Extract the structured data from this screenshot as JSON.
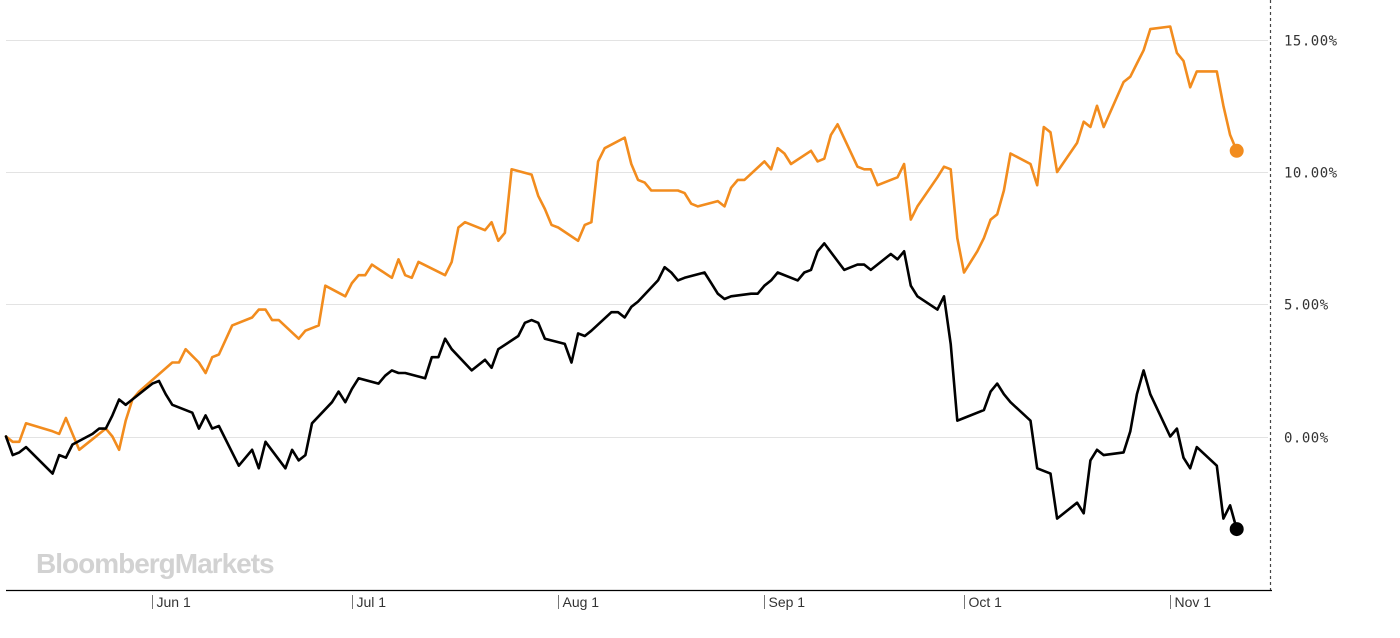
{
  "watermark": "BloombergMarkets",
  "chart_data": {
    "type": "line",
    "title": "",
    "xlabel": "",
    "ylabel": "",
    "x_tick_labels": [
      "Jun 1",
      "Jul 1",
      "Aug 1",
      "Sep 1",
      "Oct 1",
      "Nov 1"
    ],
    "y_tick_labels": [
      "15.00%",
      "10.00%",
      "5.00%",
      "0.00%"
    ],
    "y_ticks": [
      15,
      10,
      5,
      0
    ],
    "ylim": [
      -5.8,
      16.5
    ],
    "xlim": [
      "2018-05-10",
      "2018-11-16"
    ],
    "grid": true,
    "legend": "none",
    "series": [
      {
        "color": "#f28c1e",
        "end_marker": true,
        "points": [
          [
            "2018-05-10",
            0.0
          ],
          [
            "2018-05-11",
            -0.2
          ],
          [
            "2018-05-12",
            -0.2
          ],
          [
            "2018-05-13",
            0.5
          ],
          [
            "2018-05-17",
            0.2
          ],
          [
            "2018-05-18",
            0.1
          ],
          [
            "2018-05-19",
            0.7
          ],
          [
            "2018-05-20",
            0.1
          ],
          [
            "2018-05-21",
            -0.5
          ],
          [
            "2018-05-23",
            -0.1
          ],
          [
            "2018-05-24",
            0.1
          ],
          [
            "2018-05-25",
            0.3
          ],
          [
            "2018-05-26",
            0.0
          ],
          [
            "2018-05-27",
            -0.5
          ],
          [
            "2018-05-28",
            0.6
          ],
          [
            "2018-05-29",
            1.4
          ],
          [
            "2018-05-30",
            1.7
          ],
          [
            "2018-06-04",
            2.8
          ],
          [
            "2018-06-05",
            2.8
          ],
          [
            "2018-06-06",
            3.3
          ],
          [
            "2018-06-08",
            2.8
          ],
          [
            "2018-06-09",
            2.4
          ],
          [
            "2018-06-10",
            3.0
          ],
          [
            "2018-06-11",
            3.1
          ],
          [
            "2018-06-13",
            4.2
          ],
          [
            "2018-06-16",
            4.5
          ],
          [
            "2018-06-17",
            4.8
          ],
          [
            "2018-06-18",
            4.8
          ],
          [
            "2018-06-19",
            4.4
          ],
          [
            "2018-06-20",
            4.4
          ],
          [
            "2018-06-23",
            3.7
          ],
          [
            "2018-06-24",
            4.0
          ],
          [
            "2018-06-26",
            4.2
          ],
          [
            "2018-06-27",
            5.7
          ],
          [
            "2018-06-30",
            5.3
          ],
          [
            "2018-07-01",
            5.8
          ],
          [
            "2018-07-02",
            6.1
          ],
          [
            "2018-07-03",
            6.1
          ],
          [
            "2018-07-04",
            6.5
          ],
          [
            "2018-07-07",
            6.0
          ],
          [
            "2018-07-08",
            6.7
          ],
          [
            "2018-07-09",
            6.1
          ],
          [
            "2018-07-10",
            6.0
          ],
          [
            "2018-07-11",
            6.6
          ],
          [
            "2018-07-15",
            6.1
          ],
          [
            "2018-07-16",
            6.6
          ],
          [
            "2018-07-17",
            7.9
          ],
          [
            "2018-07-18",
            8.1
          ],
          [
            "2018-07-21",
            7.8
          ],
          [
            "2018-07-22",
            8.1
          ],
          [
            "2018-07-23",
            7.4
          ],
          [
            "2018-07-24",
            7.7
          ],
          [
            "2018-07-25",
            10.1
          ],
          [
            "2018-07-28",
            9.9
          ],
          [
            "2018-07-29",
            9.1
          ],
          [
            "2018-07-30",
            8.6
          ],
          [
            "2018-07-31",
            8.0
          ],
          [
            "2018-08-01",
            7.9
          ],
          [
            "2018-08-04",
            7.4
          ],
          [
            "2018-08-05",
            8.0
          ],
          [
            "2018-08-06",
            8.1
          ],
          [
            "2018-08-07",
            10.4
          ],
          [
            "2018-08-08",
            10.9
          ],
          [
            "2018-08-11",
            11.3
          ],
          [
            "2018-08-12",
            10.3
          ],
          [
            "2018-08-13",
            9.7
          ],
          [
            "2018-08-14",
            9.6
          ],
          [
            "2018-08-15",
            9.3
          ],
          [
            "2018-08-19",
            9.3
          ],
          [
            "2018-08-20",
            9.2
          ],
          [
            "2018-08-21",
            8.8
          ],
          [
            "2018-08-22",
            8.7
          ],
          [
            "2018-08-25",
            8.9
          ],
          [
            "2018-08-26",
            8.7
          ],
          [
            "2018-08-27",
            9.4
          ],
          [
            "2018-08-28",
            9.7
          ],
          [
            "2018-08-29",
            9.7
          ],
          [
            "2018-09-01",
            10.4
          ],
          [
            "2018-09-02",
            10.1
          ],
          [
            "2018-09-03",
            10.9
          ],
          [
            "2018-09-04",
            10.7
          ],
          [
            "2018-09-05",
            10.3
          ],
          [
            "2018-09-08",
            10.8
          ],
          [
            "2018-09-09",
            10.4
          ],
          [
            "2018-09-10",
            10.5
          ],
          [
            "2018-09-11",
            11.4
          ],
          [
            "2018-09-12",
            11.8
          ],
          [
            "2018-09-15",
            10.2
          ],
          [
            "2018-09-16",
            10.1
          ],
          [
            "2018-09-17",
            10.1
          ],
          [
            "2018-09-18",
            9.5
          ],
          [
            "2018-09-21",
            9.8
          ],
          [
            "2018-09-22",
            10.3
          ],
          [
            "2018-09-23",
            8.2
          ],
          [
            "2018-09-24",
            8.7
          ],
          [
            "2018-09-27",
            9.8
          ],
          [
            "2018-09-28",
            10.2
          ],
          [
            "2018-09-29",
            10.1
          ],
          [
            "2018-09-30",
            7.5
          ],
          [
            "2018-10-01",
            6.2
          ],
          [
            "2018-10-03",
            7.0
          ],
          [
            "2018-10-04",
            7.5
          ],
          [
            "2018-10-05",
            8.2
          ],
          [
            "2018-10-06",
            8.4
          ],
          [
            "2018-10-07",
            9.3
          ],
          [
            "2018-10-08",
            10.7
          ],
          [
            "2018-10-11",
            10.3
          ],
          [
            "2018-10-12",
            9.5
          ],
          [
            "2018-10-13",
            11.7
          ],
          [
            "2018-10-14",
            11.5
          ],
          [
            "2018-10-15",
            10.0
          ],
          [
            "2018-10-18",
            11.1
          ],
          [
            "2018-10-19",
            11.9
          ],
          [
            "2018-10-20",
            11.7
          ],
          [
            "2018-10-21",
            12.5
          ],
          [
            "2018-10-22",
            11.7
          ],
          [
            "2018-10-25",
            13.4
          ],
          [
            "2018-10-26",
            13.6
          ],
          [
            "2018-10-27",
            14.1
          ],
          [
            "2018-10-28",
            14.6
          ],
          [
            "2018-10-29",
            15.4
          ],
          [
            "2018-11-01",
            15.5
          ],
          [
            "2018-11-02",
            14.5
          ],
          [
            "2018-11-03",
            14.2
          ],
          [
            "2018-11-04",
            13.2
          ],
          [
            "2018-11-05",
            13.8
          ],
          [
            "2018-11-08",
            13.8
          ],
          [
            "2018-11-09",
            12.5
          ],
          [
            "2018-11-10",
            11.4
          ],
          [
            "2018-11-11",
            10.8
          ]
        ]
      },
      {
        "color": "#000000",
        "end_marker": true,
        "points": [
          [
            "2018-05-10",
            0.0
          ],
          [
            "2018-05-11",
            -0.7
          ],
          [
            "2018-05-12",
            -0.6
          ],
          [
            "2018-05-13",
            -0.4
          ],
          [
            "2018-05-17",
            -1.4
          ],
          [
            "2018-05-18",
            -0.7
          ],
          [
            "2018-05-19",
            -0.8
          ],
          [
            "2018-05-20",
            -0.3
          ],
          [
            "2018-05-23",
            0.1
          ],
          [
            "2018-05-24",
            0.3
          ],
          [
            "2018-05-25",
            0.3
          ],
          [
            "2018-05-26",
            0.8
          ],
          [
            "2018-05-27",
            1.4
          ],
          [
            "2018-05-28",
            1.2
          ],
          [
            "2018-05-31",
            1.8
          ],
          [
            "2018-06-01",
            2.0
          ],
          [
            "2018-06-02",
            2.1
          ],
          [
            "2018-06-03",
            1.6
          ],
          [
            "2018-06-04",
            1.2
          ],
          [
            "2018-06-07",
            0.9
          ],
          [
            "2018-06-08",
            0.3
          ],
          [
            "2018-06-09",
            0.8
          ],
          [
            "2018-06-10",
            0.3
          ],
          [
            "2018-06-11",
            0.4
          ],
          [
            "2018-06-14",
            -1.1
          ],
          [
            "2018-06-15",
            -0.8
          ],
          [
            "2018-06-16",
            -0.5
          ],
          [
            "2018-06-17",
            -1.2
          ],
          [
            "2018-06-18",
            -0.2
          ],
          [
            "2018-06-21",
            -1.2
          ],
          [
            "2018-06-22",
            -0.5
          ],
          [
            "2018-06-23",
            -0.9
          ],
          [
            "2018-06-24",
            -0.7
          ],
          [
            "2018-06-25",
            0.5
          ],
          [
            "2018-06-28",
            1.3
          ],
          [
            "2018-06-29",
            1.7
          ],
          [
            "2018-06-30",
            1.3
          ],
          [
            "2018-07-01",
            1.8
          ],
          [
            "2018-07-02",
            2.2
          ],
          [
            "2018-07-05",
            2.0
          ],
          [
            "2018-07-06",
            2.3
          ],
          [
            "2018-07-07",
            2.5
          ],
          [
            "2018-07-08",
            2.4
          ],
          [
            "2018-07-09",
            2.4
          ],
          [
            "2018-07-12",
            2.2
          ],
          [
            "2018-07-13",
            3.0
          ],
          [
            "2018-07-14",
            3.0
          ],
          [
            "2018-07-15",
            3.7
          ],
          [
            "2018-07-16",
            3.3
          ],
          [
            "2018-07-19",
            2.5
          ],
          [
            "2018-07-20",
            2.7
          ],
          [
            "2018-07-21",
            2.9
          ],
          [
            "2018-07-22",
            2.6
          ],
          [
            "2018-07-23",
            3.3
          ],
          [
            "2018-07-26",
            3.8
          ],
          [
            "2018-07-27",
            4.3
          ],
          [
            "2018-07-28",
            4.4
          ],
          [
            "2018-07-29",
            4.3
          ],
          [
            "2018-07-30",
            3.7
          ],
          [
            "2018-08-02",
            3.5
          ],
          [
            "2018-08-03",
            2.8
          ],
          [
            "2018-08-04",
            3.9
          ],
          [
            "2018-08-05",
            3.8
          ],
          [
            "2018-08-06",
            4.0
          ],
          [
            "2018-08-09",
            4.7
          ],
          [
            "2018-08-10",
            4.7
          ],
          [
            "2018-08-11",
            4.5
          ],
          [
            "2018-08-12",
            4.9
          ],
          [
            "2018-08-13",
            5.1
          ],
          [
            "2018-08-16",
            5.9
          ],
          [
            "2018-08-17",
            6.4
          ],
          [
            "2018-08-18",
            6.2
          ],
          [
            "2018-08-19",
            5.9
          ],
          [
            "2018-08-20",
            6.0
          ],
          [
            "2018-08-23",
            6.2
          ],
          [
            "2018-08-24",
            5.8
          ],
          [
            "2018-08-25",
            5.4
          ],
          [
            "2018-08-26",
            5.2
          ],
          [
            "2018-08-27",
            5.3
          ],
          [
            "2018-08-30",
            5.4
          ],
          [
            "2018-08-31",
            5.4
          ],
          [
            "2018-09-01",
            5.7
          ],
          [
            "2018-09-02",
            5.9
          ],
          [
            "2018-09-03",
            6.2
          ],
          [
            "2018-09-06",
            5.9
          ],
          [
            "2018-09-07",
            6.2
          ],
          [
            "2018-09-08",
            6.3
          ],
          [
            "2018-09-09",
            7.0
          ],
          [
            "2018-09-10",
            7.3
          ],
          [
            "2018-09-13",
            6.3
          ],
          [
            "2018-09-14",
            6.4
          ],
          [
            "2018-09-15",
            6.5
          ],
          [
            "2018-09-16",
            6.5
          ],
          [
            "2018-09-17",
            6.3
          ],
          [
            "2018-09-20",
            6.9
          ],
          [
            "2018-09-21",
            6.7
          ],
          [
            "2018-09-22",
            7.0
          ],
          [
            "2018-09-23",
            5.7
          ],
          [
            "2018-09-24",
            5.3
          ],
          [
            "2018-09-27",
            4.8
          ],
          [
            "2018-09-28",
            5.3
          ],
          [
            "2018-09-29",
            3.5
          ],
          [
            "2018-09-30",
            0.6
          ],
          [
            "2018-10-01",
            0.7
          ],
          [
            "2018-10-04",
            1.0
          ],
          [
            "2018-10-05",
            1.7
          ],
          [
            "2018-10-06",
            2.0
          ],
          [
            "2018-10-07",
            1.6
          ],
          [
            "2018-10-08",
            1.3
          ],
          [
            "2018-10-11",
            0.6
          ],
          [
            "2018-10-12",
            -1.2
          ],
          [
            "2018-10-13",
            -1.3
          ],
          [
            "2018-10-14",
            -1.4
          ],
          [
            "2018-10-15",
            -3.1
          ],
          [
            "2018-10-18",
            -2.5
          ],
          [
            "2018-10-19",
            -2.9
          ],
          [
            "2018-10-20",
            -0.9
          ],
          [
            "2018-10-21",
            -0.5
          ],
          [
            "2018-10-22",
            -0.7
          ],
          [
            "2018-10-25",
            -0.6
          ],
          [
            "2018-10-26",
            0.2
          ],
          [
            "2018-10-27",
            1.6
          ],
          [
            "2018-10-28",
            2.5
          ],
          [
            "2018-10-29",
            1.6
          ],
          [
            "2018-11-01",
            0.0
          ],
          [
            "2018-11-02",
            0.3
          ],
          [
            "2018-11-03",
            -0.8
          ],
          [
            "2018-11-04",
            -1.2
          ],
          [
            "2018-11-05",
            -0.4
          ],
          [
            "2018-11-08",
            -1.1
          ],
          [
            "2018-11-09",
            -3.1
          ],
          [
            "2018-11-10",
            -2.6
          ],
          [
            "2018-11-11",
            -3.5
          ]
        ]
      }
    ]
  }
}
